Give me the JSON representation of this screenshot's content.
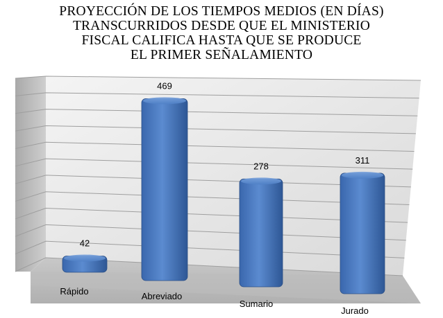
{
  "chart_data": {
    "type": "bar",
    "title_lines": [
      "PROYECCIÓN DE LOS TIEMPOS MEDIOS (EN DÍAS)",
      "TRANSCURRIDOS DESDE QUE EL MINISTERIO",
      "FISCAL CALIFICA HASTA QUE SE PRODUCE",
      "EL PRIMER SEÑALAMIENTO"
    ],
    "categories": [
      "Rápido",
      "Abreviado",
      "Sumario",
      "Jurado"
    ],
    "values": [
      42,
      469,
      278,
      311
    ],
    "ylim": [
      0,
      550
    ],
    "grid": true,
    "legend": "none",
    "bar_color": "#4a7ac0"
  }
}
